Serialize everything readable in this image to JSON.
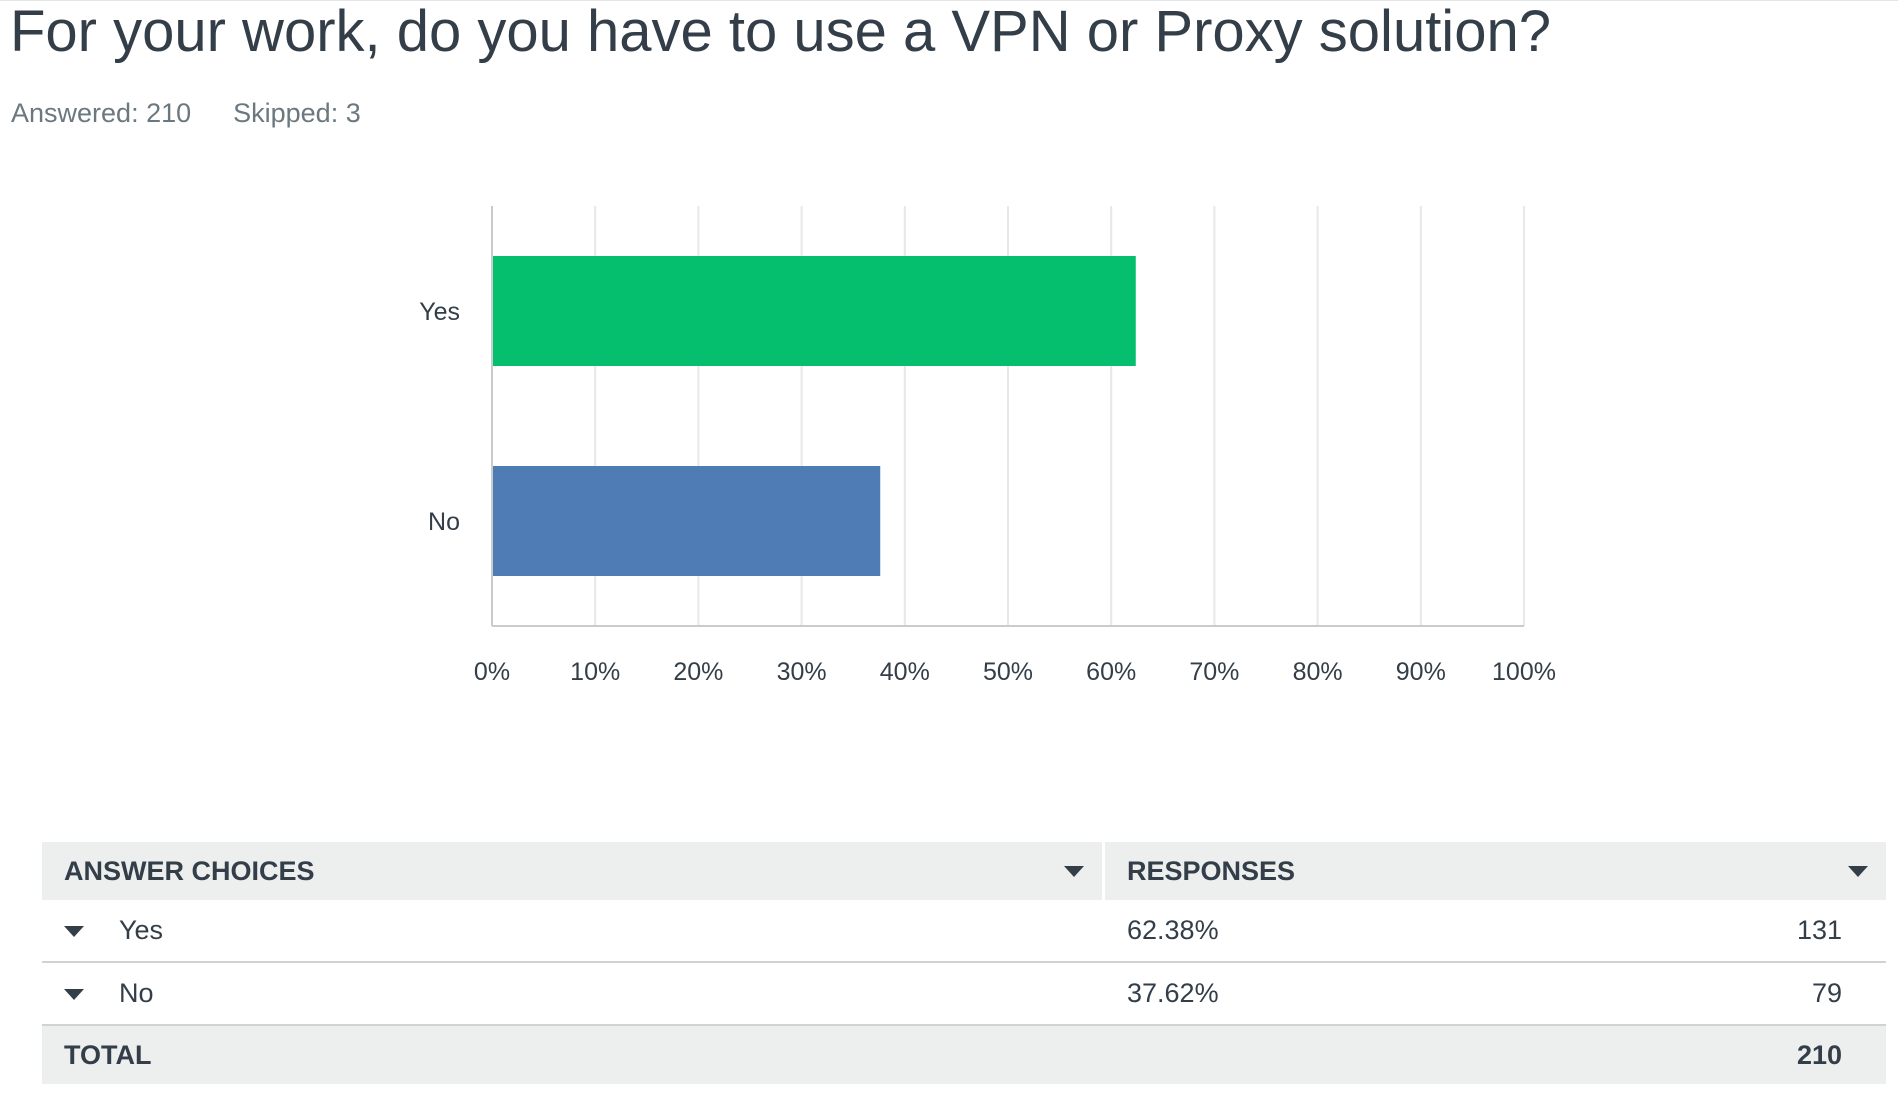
{
  "question": {
    "title": "For your work, do you have to use a VPN or Proxy solution?",
    "answered_label": "Answered: 210",
    "skipped_label": "Skipped: 3"
  },
  "chart_data": {
    "type": "bar",
    "orientation": "horizontal",
    "categories": [
      "Yes",
      "No"
    ],
    "values": [
      62.38,
      37.62
    ],
    "value_unit": "%",
    "colors": [
      "#05bf6e",
      "#507cb6"
    ],
    "xlim": [
      0,
      100
    ],
    "xticks": [
      "0%",
      "10%",
      "20%",
      "30%",
      "40%",
      "50%",
      "60%",
      "70%",
      "80%",
      "90%",
      "100%"
    ],
    "grid": true,
    "legend": "none"
  },
  "table": {
    "headers": {
      "choices": "ANSWER CHOICES",
      "responses": "RESPONSES"
    },
    "rows": [
      {
        "choice": "Yes",
        "percent": "62.38%",
        "count": "131"
      },
      {
        "choice": "No",
        "percent": "37.62%",
        "count": "79"
      }
    ],
    "total_label": "TOTAL",
    "total_count": "210"
  }
}
